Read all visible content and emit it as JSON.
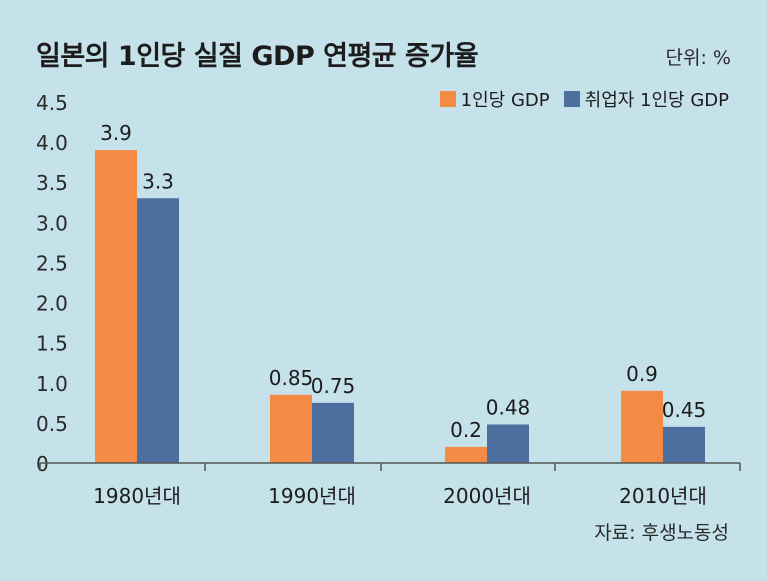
{
  "title": "일본의 1인당 실질 GDP 연평균 증가율",
  "unit_label": "단위: %",
  "source": "자료: 후생노동성",
  "colors": {
    "background": "#c5e1ea",
    "series1": "#f58a45",
    "series2": "#4d6f9f",
    "axis": "#555555"
  },
  "chart_data": {
    "type": "bar",
    "title": "일본의 1인당 실질 GDP 연평균 증가율",
    "categories": [
      "1980년대",
      "1990년대",
      "2000년대",
      "2010년대"
    ],
    "series": [
      {
        "name": "1인당 GDP",
        "values": [
          3.9,
          0.85,
          0.2,
          0.9
        ],
        "labels": [
          "3.9",
          "0.85",
          "0.2",
          "0.9"
        ]
      },
      {
        "name": "취업자 1인당 GDP",
        "values": [
          3.3,
          0.75,
          0.48,
          0.45
        ],
        "labels": [
          "3.3",
          "0.75",
          "0.48",
          "0.45"
        ]
      }
    ],
    "yticks": [
      "0",
      "0.5",
      "1.0",
      "1.5",
      "2.0",
      "2.5",
      "3.0",
      "3.5",
      "4.0",
      "4.5"
    ],
    "ylim": [
      0,
      4.5
    ],
    "xlabel": "",
    "ylabel": "",
    "legend_position": "top-right",
    "grid": false
  }
}
